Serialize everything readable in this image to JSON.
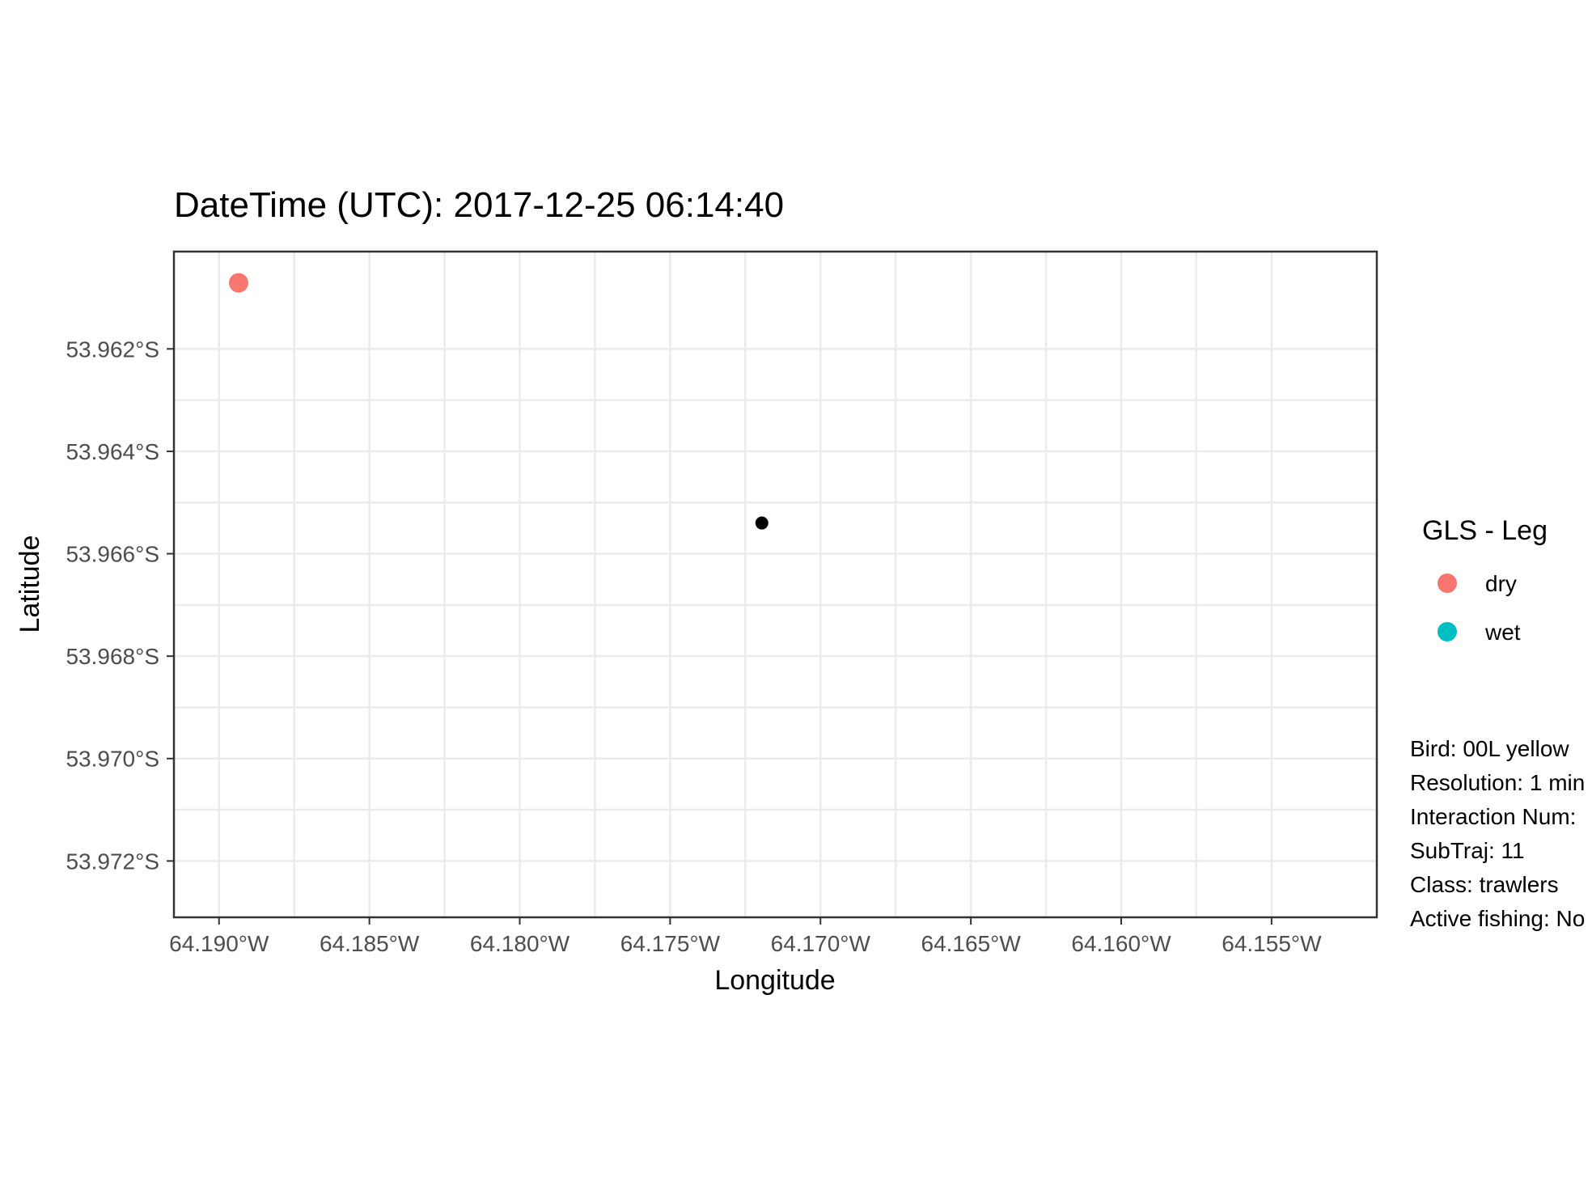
{
  "chart_data": {
    "type": "scatter",
    "title": "DateTime (UTC): 2017-12-25 06:14:40",
    "xlabel": "Longitude",
    "ylabel": "Latitude",
    "xlim": [
      -64.1915,
      -64.1515
    ],
    "ylim": [
      -53.9731,
      -53.9601
    ],
    "x_ticks": [
      -64.19,
      -64.185,
      -64.18,
      -64.175,
      -64.17,
      -64.165,
      -64.16,
      -64.155
    ],
    "x_tick_labels": [
      "64.190°W",
      "64.185°W",
      "64.180°W",
      "64.175°W",
      "64.170°W",
      "64.165°W",
      "64.160°W",
      "64.155°W"
    ],
    "y_ticks": [
      -53.962,
      -53.964,
      -53.966,
      -53.968,
      -53.97,
      -53.972
    ],
    "y_tick_labels": [
      "53.962°S",
      "53.964°S",
      "53.966°S",
      "53.968°S",
      "53.970°S",
      "53.972°S"
    ],
    "grid": true,
    "series": [
      {
        "name": "dry",
        "color": "#F8766D",
        "points": [
          {
            "x": -64.18935,
            "y": -53.96071
          }
        ]
      },
      {
        "name": "wet",
        "color": "#00BFC4",
        "points": []
      }
    ],
    "vessel": {
      "color": "#000000",
      "points": [
        {
          "x": -64.17195,
          "y": -53.9654
        }
      ]
    },
    "legend": {
      "title": "GLS - Leg",
      "placement": "right",
      "entries": [
        {
          "label": "dry",
          "color": "#F8766D"
        },
        {
          "label": "wet",
          "color": "#00BFC4"
        }
      ]
    },
    "annotations": [
      "Bird: 00L yellow",
      "Resolution: 1 min",
      "Interaction Num:",
      "SubTraj: 11",
      "Class: trawlers",
      "Active fishing: No"
    ]
  }
}
